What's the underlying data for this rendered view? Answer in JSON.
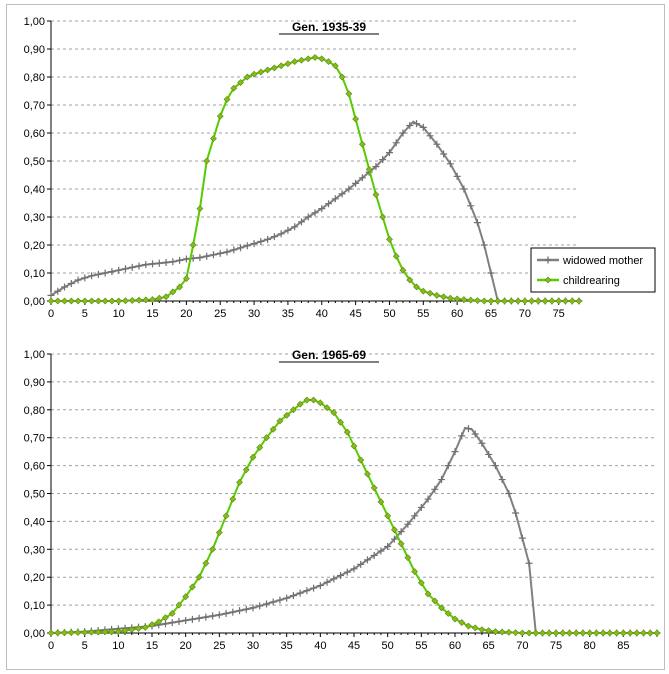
{
  "chart_data": [
    {
      "type": "line",
      "title": "Gen. 1935-39",
      "xlim": [
        0,
        78
      ],
      "ylim": [
        0,
        1
      ],
      "xticks": [
        "0",
        "5",
        "10",
        "15",
        "20",
        "25",
        "30",
        "35",
        "40",
        "45",
        "50",
        "55",
        "60",
        "65",
        "70",
        "75"
      ],
      "yticks": [
        "0,00",
        "0,10",
        "0,20",
        "0,30",
        "0,40",
        "0,50",
        "0,60",
        "0,70",
        "0,80",
        "0,90",
        "1,00"
      ],
      "grid": "horizontal-dashed",
      "legend": "right",
      "series": [
        {
          "name": "widowed mother",
          "color": "#808080",
          "marker": "plus",
          "points": [
            [
              0,
              0.02
            ],
            [
              2,
              0.05
            ],
            [
              4,
              0.075
            ],
            [
              6,
              0.09
            ],
            [
              8,
              0.1
            ],
            [
              10,
              0.11
            ],
            [
              12,
              0.12
            ],
            [
              14,
              0.13
            ],
            [
              16,
              0.135
            ],
            [
              18,
              0.14
            ],
            [
              20,
              0.15
            ],
            [
              22,
              0.155
            ],
            [
              24,
              0.165
            ],
            [
              26,
              0.175
            ],
            [
              28,
              0.19
            ],
            [
              30,
              0.205
            ],
            [
              32,
              0.22
            ],
            [
              34,
              0.24
            ],
            [
              36,
              0.265
            ],
            [
              38,
              0.3
            ],
            [
              40,
              0.33
            ],
            [
              42,
              0.365
            ],
            [
              44,
              0.4
            ],
            [
              46,
              0.44
            ],
            [
              48,
              0.48
            ],
            [
              50,
              0.53
            ],
            [
              52,
              0.6
            ],
            [
              53.5,
              0.64
            ],
            [
              55,
              0.62
            ],
            [
              57,
              0.56
            ],
            [
              59,
              0.49
            ],
            [
              61,
              0.4
            ],
            [
              63,
              0.28
            ],
            [
              64,
              0.2
            ],
            [
              65,
              0.1
            ],
            [
              66,
              0
            ],
            [
              78,
              0
            ]
          ]
        },
        {
          "name": "childrearing",
          "color": "#55cc00",
          "marker": "diamond",
          "points": [
            [
              0,
              0
            ],
            [
              5,
              0
            ],
            [
              10,
              0
            ],
            [
              15,
              0.005
            ],
            [
              17,
              0.015
            ],
            [
              19,
              0.05
            ],
            [
              20,
              0.08
            ],
            [
              21,
              0.2
            ],
            [
              22,
              0.33
            ],
            [
              23,
              0.5
            ],
            [
              24,
              0.58
            ],
            [
              25,
              0.66
            ],
            [
              26,
              0.72
            ],
            [
              27,
              0.76
            ],
            [
              28,
              0.78
            ],
            [
              29,
              0.8
            ],
            [
              30,
              0.81
            ],
            [
              32,
              0.825
            ],
            [
              34,
              0.84
            ],
            [
              36,
              0.855
            ],
            [
              38,
              0.865
            ],
            [
              39,
              0.87
            ],
            [
              40,
              0.865
            ],
            [
              41,
              0.855
            ],
            [
              42,
              0.84
            ],
            [
              43,
              0.8
            ],
            [
              44,
              0.74
            ],
            [
              45,
              0.65
            ],
            [
              46,
              0.56
            ],
            [
              47,
              0.47
            ],
            [
              48,
              0.38
            ],
            [
              49,
              0.3
            ],
            [
              50,
              0.22
            ],
            [
              51,
              0.16
            ],
            [
              52,
              0.11
            ],
            [
              53,
              0.075
            ],
            [
              54,
              0.05
            ],
            [
              55,
              0.035
            ],
            [
              57,
              0.02
            ],
            [
              59,
              0.01
            ],
            [
              61,
              0.005
            ],
            [
              64,
              0
            ],
            [
              78,
              0
            ]
          ]
        }
      ]
    },
    {
      "type": "line",
      "title": "Gen. 1965-69",
      "xlim": [
        0,
        90
      ],
      "ylim": [
        0,
        1
      ],
      "xticks": [
        "0",
        "5",
        "10",
        "15",
        "20",
        "25",
        "30",
        "35",
        "40",
        "45",
        "50",
        "55",
        "60",
        "65",
        "70",
        "75",
        "80",
        "85"
      ],
      "yticks": [
        "0,00",
        "0,10",
        "0,20",
        "0,30",
        "0,40",
        "0,50",
        "0,60",
        "0,70",
        "0,80",
        "0,90",
        "1,00"
      ],
      "grid": "horizontal-dashed",
      "series": [
        {
          "name": "widowed mother",
          "color": "#808080",
          "marker": "plus",
          "points": [
            [
              0,
              0
            ],
            [
              5,
              0.005
            ],
            [
              10,
              0.015
            ],
            [
              15,
              0.025
            ],
            [
              20,
              0.045
            ],
            [
              25,
              0.065
            ],
            [
              30,
              0.09
            ],
            [
              35,
              0.125
            ],
            [
              40,
              0.17
            ],
            [
              45,
              0.23
            ],
            [
              50,
              0.31
            ],
            [
              53,
              0.39
            ],
            [
              56,
              0.48
            ],
            [
              58,
              0.55
            ],
            [
              60,
              0.65
            ],
            [
              61.5,
              0.735
            ],
            [
              62.5,
              0.73
            ],
            [
              64,
              0.68
            ],
            [
              66,
              0.6
            ],
            [
              68,
              0.5
            ],
            [
              69,
              0.43
            ],
            [
              70,
              0.34
            ],
            [
              71,
              0.25
            ],
            [
              72,
              0
            ],
            [
              90,
              0
            ]
          ]
        },
        {
          "name": "childrearing",
          "color": "#55cc00",
          "marker": "diamond",
          "points": [
            [
              0,
              0
            ],
            [
              10,
              0.005
            ],
            [
              14,
              0.02
            ],
            [
              16,
              0.04
            ],
            [
              18,
              0.07
            ],
            [
              20,
              0.13
            ],
            [
              22,
              0.2
            ],
            [
              24,
              0.3
            ],
            [
              26,
              0.42
            ],
            [
              28,
              0.54
            ],
            [
              30,
              0.63
            ],
            [
              32,
              0.7
            ],
            [
              34,
              0.76
            ],
            [
              36,
              0.8
            ],
            [
              37,
              0.82
            ],
            [
              38,
              0.835
            ],
            [
              39,
              0.835
            ],
            [
              40,
              0.825
            ],
            [
              42,
              0.79
            ],
            [
              44,
              0.72
            ],
            [
              46,
              0.62
            ],
            [
              48,
              0.52
            ],
            [
              50,
              0.42
            ],
            [
              52,
              0.32
            ],
            [
              54,
              0.22
            ],
            [
              56,
              0.14
            ],
            [
              58,
              0.09
            ],
            [
              60,
              0.05
            ],
            [
              62,
              0.025
            ],
            [
              64,
              0.012
            ],
            [
              66,
              0.005
            ],
            [
              70,
              0
            ],
            [
              90,
              0
            ]
          ]
        }
      ]
    }
  ]
}
